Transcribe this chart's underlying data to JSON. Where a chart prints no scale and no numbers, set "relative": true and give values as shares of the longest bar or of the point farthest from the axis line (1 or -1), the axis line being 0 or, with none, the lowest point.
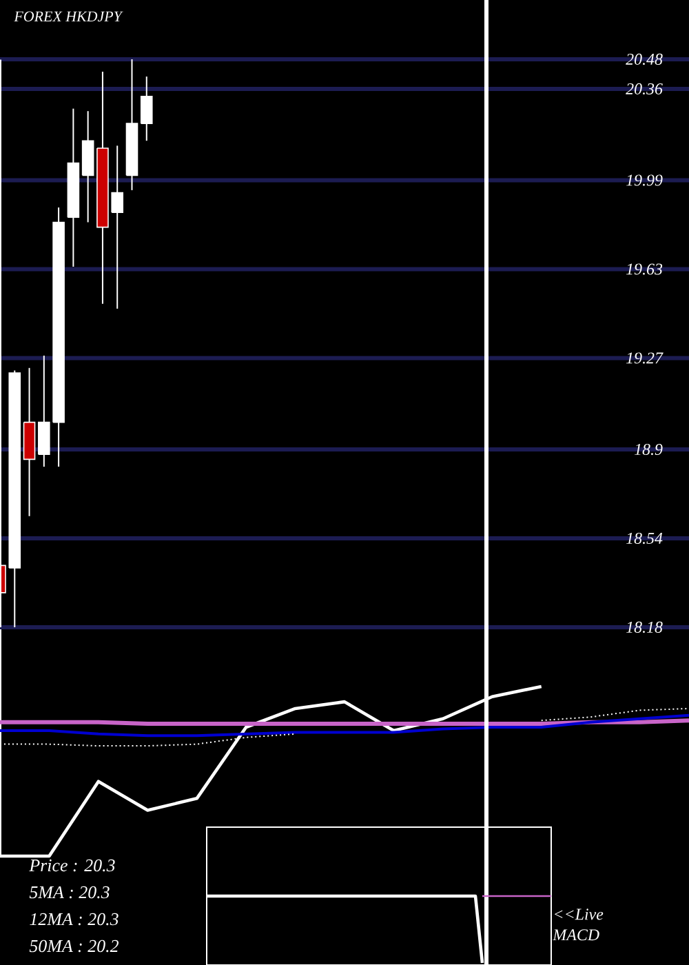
{
  "chart_data": [
    {
      "type": "candlestick",
      "title": "FOREX HKDJPY",
      "categories": [
        null,
        null,
        null,
        null,
        null,
        null,
        null,
        null,
        null,
        null,
        null,
        null,
        null,
        null,
        null,
        null,
        null,
        null,
        null,
        null,
        null,
        null,
        null,
        null,
        null,
        null,
        null,
        null,
        null,
        null,
        null,
        null,
        null,
        null,
        null,
        null,
        null,
        null,
        null,
        null,
        null,
        null,
        null,
        null,
        null,
        null,
        null,
        null
      ],
      "ohlc": [
        [
          18.43,
          18.86,
          18.19,
          18.32
        ],
        [
          18.42,
          19.22,
          18.18,
          19.21
        ],
        [
          19.01,
          19.23,
          18.63,
          18.86
        ],
        [
          18.88,
          19.28,
          18.83,
          19.01
        ],
        [
          19.01,
          19.88,
          18.83,
          19.82
        ],
        [
          19.84,
          20.28,
          19.64,
          20.06
        ],
        [
          20.01,
          20.27,
          19.82,
          20.15
        ],
        [
          20.12,
          20.43,
          19.49,
          19.8
        ],
        [
          19.86,
          20.13,
          19.47,
          19.94
        ],
        [
          20.01,
          20.48,
          19.95,
          20.22
        ],
        [
          20.22,
          20.41,
          20.15,
          20.33
        ],
        null,
        null,
        null,
        null,
        null,
        null,
        null,
        null,
        null,
        null,
        null,
        null,
        null,
        null,
        null,
        null,
        null,
        null,
        null,
        null,
        null,
        null,
        null,
        null,
        null,
        null,
        null,
        null,
        null,
        null,
        null,
        null,
        null,
        null,
        null,
        null,
        null
      ],
      "colors": [
        "#cc0000",
        "#ffffff",
        "#cc0000",
        "#ffffff",
        "#ffffff",
        "#ffffff",
        "#ffffff",
        "#cc0000",
        "#ffffff",
        "#ffffff",
        "#ffffff",
        null,
        null,
        null,
        null,
        null,
        null,
        null,
        null,
        null,
        null,
        null,
        null,
        null,
        null,
        null,
        null,
        null,
        null,
        null,
        null,
        null,
        null,
        null,
        null,
        null,
        null,
        null,
        null,
        null,
        null,
        null,
        null,
        null,
        null,
        null,
        null,
        null
      ],
      "ylim": [
        18.18,
        20.72
      ],
      "yticks": [
        18.18,
        18.54,
        18.9,
        19.27,
        19.63,
        19.99,
        20.36,
        20.48
      ],
      "grid": "y",
      "tick_labels": "y"
    },
    {
      "type": "line",
      "relative": true,
      "categories": [
        null,
        null,
        null,
        null,
        null,
        null,
        null,
        null,
        null,
        null,
        null,
        null,
        null,
        null,
        null
      ],
      "series": [
        {
          "color": "#ffffff",
          "values": [
            0,
            0,
            0.44,
            0.27,
            0.34,
            0.76,
            0.87,
            0.91,
            0.74,
            0.81,
            0.94,
            1,
            null,
            null,
            null
          ]
        },
        {
          "color": "#c864c8",
          "values": [
            0.79,
            0.79,
            0.79,
            0.78,
            0.78,
            0.78,
            0.78,
            0.78,
            0.78,
            0.78,
            0.78,
            0.78,
            0.79,
            0.79,
            0.8
          ]
        },
        {
          "color": "#0000d0",
          "values": [
            0.74,
            0.74,
            0.72,
            0.71,
            0.71,
            0.72,
            0.73,
            0.73,
            0.73,
            0.75,
            0.76,
            0.76,
            0.79,
            0.81,
            0.83
          ]
        },
        {
          "color": "#ffffff",
          "line_style": "dotted",
          "values": [
            0.66,
            0.66,
            0.65,
            0.65,
            0.66,
            0.7,
            0.72,
            null,
            null,
            null,
            null,
            0.8,
            0.82,
            0.86,
            0.87
          ]
        }
      ],
      "annotations": [
        "Price : 20.3",
        "5MA : 20.3",
        "12MA : 20.3",
        "50MA : 20.2"
      ]
    },
    {
      "type": "line",
      "relative": true,
      "categories": [
        null,
        null,
        null,
        null,
        null,
        null,
        null,
        null,
        null,
        null,
        null,
        null,
        null,
        null,
        null,
        null,
        null,
        null,
        null,
        null,
        null,
        null,
        null,
        null,
        null,
        null,
        null,
        null,
        null,
        null,
        null,
        null,
        null,
        null,
        null,
        null,
        null,
        null,
        null,
        null,
        null,
        null,
        null,
        null,
        null,
        null,
        null,
        null,
        null,
        null,
        null
      ],
      "series": [
        {
          "color": "#ffffff",
          "values": [
            1,
            1,
            1,
            1,
            1,
            1,
            1,
            1,
            1,
            1,
            1,
            1,
            1,
            1,
            1,
            1,
            1,
            1,
            1,
            1,
            1,
            1,
            1,
            1,
            1,
            1,
            1,
            1,
            1,
            1,
            1,
            1,
            1,
            1,
            1,
            1,
            1,
            1,
            1,
            1,
            0,
            null,
            null,
            null,
            null,
            null,
            null,
            null,
            null,
            null,
            null
          ]
        },
        {
          "color": "#c864c8",
          "values": [
            null,
            null,
            null,
            null,
            null,
            null,
            null,
            null,
            null,
            null,
            null,
            null,
            null,
            null,
            null,
            null,
            null,
            null,
            null,
            null,
            null,
            null,
            null,
            null,
            null,
            null,
            null,
            null,
            null,
            null,
            null,
            null,
            null,
            null,
            null,
            null,
            null,
            null,
            null,
            null,
            1,
            1,
            1,
            1,
            1,
            1,
            1,
            1,
            1,
            1,
            1
          ]
        }
      ],
      "annotations": [
        "<<Live MACD"
      ]
    }
  ]
}
